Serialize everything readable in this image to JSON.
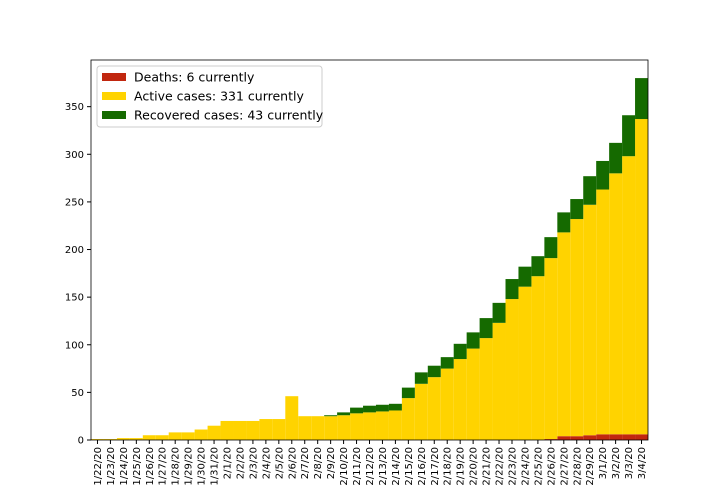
{
  "chart_data": {
    "type": "stacked_bar",
    "categories": [
      "1/22/20",
      "1/23/20",
      "1/24/20",
      "1/25/20",
      "1/26/20",
      "1/27/20",
      "1/28/20",
      "1/29/20",
      "1/30/20",
      "1/31/20",
      "2/1/20",
      "2/2/20",
      "2/3/20",
      "2/4/20",
      "2/5/20",
      "2/6/20",
      "2/7/20",
      "2/8/20",
      "2/9/20",
      "2/10/20",
      "2/11/20",
      "2/12/20",
      "2/13/20",
      "2/14/20",
      "2/15/20",
      "2/16/20",
      "2/17/20",
      "2/18/20",
      "2/19/20",
      "2/20/20",
      "2/21/20",
      "2/22/20",
      "2/23/20",
      "2/24/20",
      "2/25/20",
      "2/26/20",
      "2/27/20",
      "2/28/20",
      "2/29/20",
      "3/1/20",
      "3/2/20",
      "3/3/20",
      "3/4/20"
    ],
    "series": [
      {
        "name": "Deaths: 6 currently",
        "color": "#c1270f",
        "values": [
          0,
          0,
          0,
          0,
          0,
          0,
          0,
          0,
          0,
          0,
          0,
          0,
          0,
          0,
          0,
          0,
          0,
          0,
          0,
          0,
          0,
          0,
          0,
          0,
          0,
          0,
          0,
          0,
          0,
          0,
          0,
          0,
          0,
          0,
          0,
          1,
          4,
          4,
          5,
          6,
          6,
          6,
          6
        ]
      },
      {
        "name": "Active cases: 331 currently",
        "color": "#ffd300",
        "values": [
          1,
          1,
          2,
          2,
          5,
          5,
          8,
          8,
          11,
          15,
          20,
          20,
          20,
          22,
          22,
          46,
          25,
          25,
          25,
          26,
          28,
          29,
          30,
          31,
          44,
          59,
          66,
          75,
          85,
          96,
          107,
          123,
          148,
          161,
          172,
          190,
          214,
          228,
          242,
          257,
          274,
          292,
          331
        ]
      },
      {
        "name": "Recovered cases: 43 currently",
        "color": "#156a00",
        "values": [
          0,
          0,
          0,
          0,
          0,
          0,
          0,
          0,
          0,
          0,
          0,
          0,
          0,
          0,
          0,
          0,
          0,
          0,
          1,
          3,
          6,
          7,
          7,
          7,
          11,
          12,
          12,
          12,
          16,
          17,
          21,
          21,
          21,
          21,
          21,
          22,
          21,
          21,
          30,
          30,
          32,
          43,
          43
        ]
      }
    ],
    "ylim": [
      0,
      399
    ],
    "yticks": [
      0,
      50,
      100,
      150,
      200,
      250,
      300,
      350
    ],
    "legend": "upper left",
    "grid": false
  }
}
